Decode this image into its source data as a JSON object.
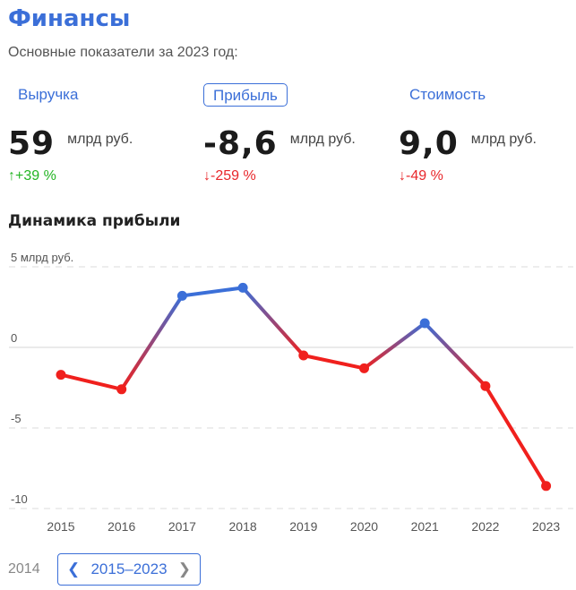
{
  "header": {
    "title": "Финансы",
    "subtitle": "Основные показатели за 2023 год:"
  },
  "tabs": [
    {
      "label": "Выручка",
      "active": false
    },
    {
      "label": "Прибыль",
      "active": true
    },
    {
      "label": "Стоимость",
      "active": false
    }
  ],
  "metrics": [
    {
      "value": "59",
      "unit": "млрд руб.",
      "delta": "↑+39 %",
      "trend": "up"
    },
    {
      "value": "-8,6",
      "unit": "млрд руб.",
      "delta": "↓-259 %",
      "trend": "down"
    },
    {
      "value": "9,0",
      "unit": "млрд руб.",
      "delta": "↓-49 %",
      "trend": "down"
    }
  ],
  "section_title": "Динамика прибыли",
  "chart_data": {
    "type": "line",
    "categories": [
      "2015",
      "2016",
      "2017",
      "2018",
      "2019",
      "2020",
      "2021",
      "2022",
      "2023"
    ],
    "values": [
      -1.7,
      -2.6,
      3.2,
      3.7,
      -0.5,
      -1.3,
      1.5,
      -2.4,
      -8.6
    ],
    "y_ticks": [
      5,
      0,
      -5,
      -10
    ],
    "y_tick_labels": [
      "5 млрд руб.",
      "0",
      "-5",
      "-10"
    ],
    "ylim": [
      -10.5,
      5.5
    ],
    "grid": true,
    "colors": {
      "positive": "#3b6fd8",
      "negative": "#f0201d"
    }
  },
  "footer": {
    "prev_year": "2014",
    "range_label": "2015–2023",
    "prev_icon": "chevron-left-icon",
    "next_icon": "chevron-right-icon"
  }
}
